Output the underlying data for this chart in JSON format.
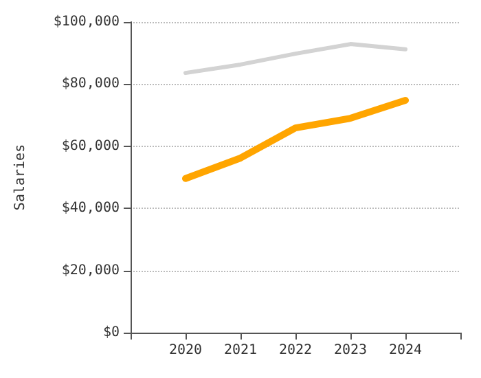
{
  "chart_data": {
    "type": "line",
    "ylabel": "Salaries",
    "x": [
      2020,
      2021,
      2022,
      2023,
      2024
    ],
    "series": [
      {
        "color": "#d3d3d3",
        "values": [
          83600,
          86300,
          89800,
          92900,
          91200
        ]
      },
      {
        "color": "#ffa500",
        "values": [
          49600,
          56200,
          65900,
          69000,
          74800
        ]
      }
    ],
    "xlim": [
      2019,
      2025
    ],
    "xticks": [
      {
        "value": 2019,
        "label": null
      },
      2020,
      2021,
      2022,
      2023,
      2024,
      {
        "value": 2025,
        "label": null
      }
    ],
    "ylim": [
      0,
      100000
    ],
    "yticks": [
      {
        "value": 0,
        "label": "$0"
      },
      {
        "value": 20000,
        "label": "$20,000"
      },
      {
        "value": 40000,
        "label": "$40,000"
      },
      {
        "value": 60000,
        "label": "$60,000"
      },
      {
        "value": 80000,
        "label": "$80,000"
      },
      {
        "value": 100000,
        "label": "$100,000"
      }
    ],
    "grid": "y",
    "marker": "none",
    "line_style": "solid"
  }
}
